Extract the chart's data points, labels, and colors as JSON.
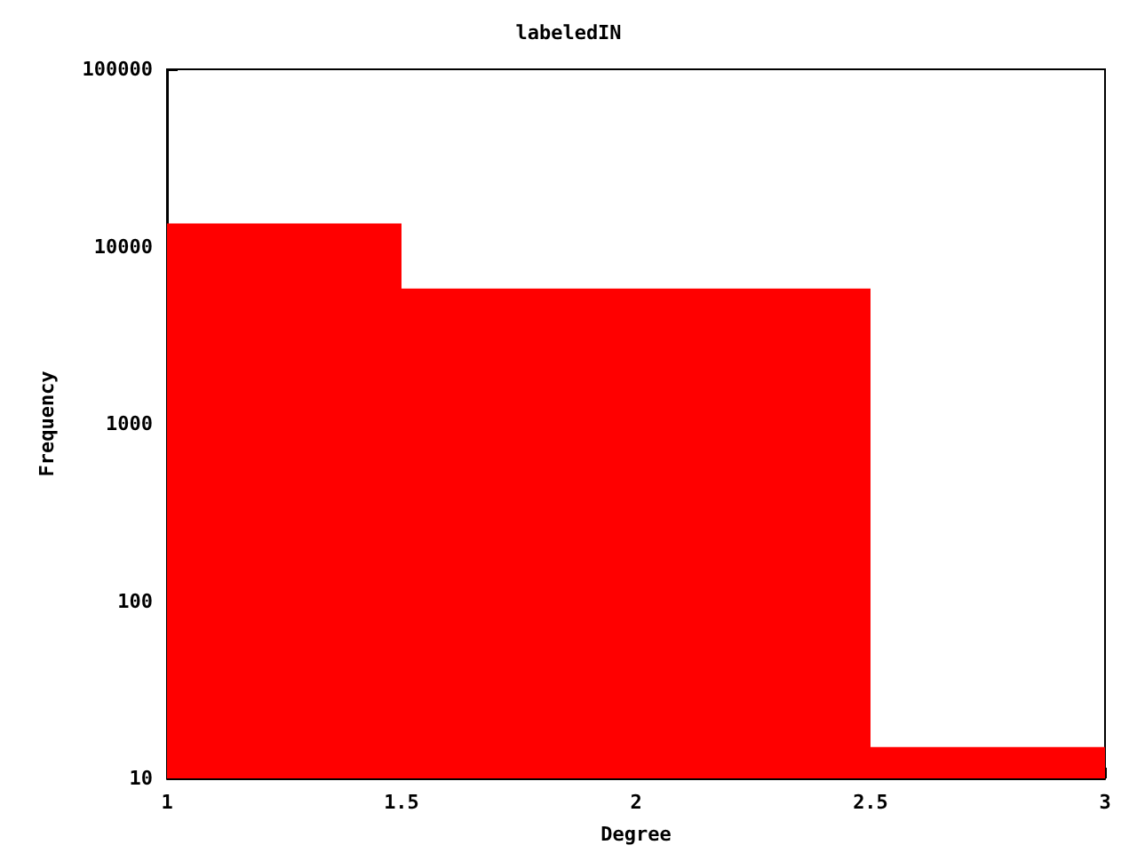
{
  "chart_data": {
    "type": "histogram",
    "title": "labeledIN",
    "xlabel": "Degree",
    "ylabel": "Frequency",
    "bins": [
      1,
      1.5,
      2.5,
      3
    ],
    "values": [
      13500,
      5800,
      15
    ],
    "color": "#ff0000",
    "xlim": [
      1,
      3
    ],
    "xticks": [
      1,
      1.5,
      2,
      2.5,
      3
    ],
    "ylim": [
      10,
      100000
    ],
    "yticks": [
      10,
      100,
      1000,
      10000,
      100000
    ],
    "log": true,
    "grid": false
  }
}
